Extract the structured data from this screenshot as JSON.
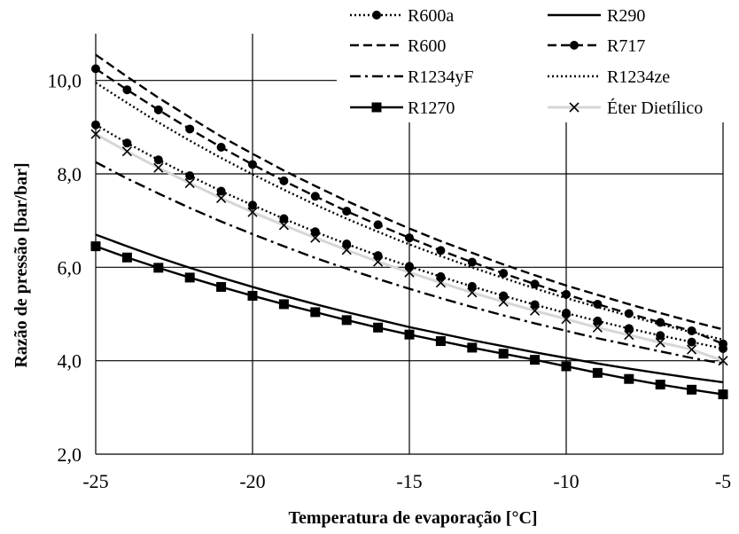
{
  "chart_data": {
    "type": "line",
    "title": "",
    "xlabel": "Temperatura de evaporação [°C]",
    "ylabel": "Razão de pressão [bar/bar]",
    "xlim": [
      -25,
      -5
    ],
    "ylim": [
      2.0,
      11.0
    ],
    "xticks": [
      -25,
      -20,
      -15,
      -10,
      -5
    ],
    "xtick_labels": [
      "-25",
      "-20",
      "-15",
      "-10",
      "-5"
    ],
    "yticks": [
      2.0,
      4.0,
      6.0,
      8.0,
      10.0
    ],
    "ytick_labels": [
      "2,0",
      "4,0",
      "6,0",
      "8,0",
      "10,0"
    ],
    "grid": true,
    "legend_position": "top-right",
    "x": [
      -25,
      -24,
      -23,
      -22,
      -21,
      -20,
      -19,
      -18,
      -17,
      -16,
      -15,
      -14,
      -13,
      -12,
      -11,
      -10,
      -9,
      -8,
      -7,
      -6,
      -5
    ],
    "series": [
      {
        "name": "R600a",
        "color": "#000000",
        "style": "dotted",
        "marker": "circle",
        "values": [
          9.05,
          8.66,
          8.3,
          7.96,
          7.63,
          7.33,
          7.04,
          6.76,
          6.5,
          6.25,
          6.02,
          5.8,
          5.59,
          5.39,
          5.2,
          5.02,
          4.85,
          4.69,
          4.54,
          4.4,
          4.26
        ]
      },
      {
        "name": "R290",
        "color": "#000000",
        "style": "solid",
        "marker": "none",
        "values": [
          6.7,
          6.45,
          6.21,
          5.99,
          5.78,
          5.58,
          5.39,
          5.21,
          5.04,
          4.88,
          4.72,
          4.58,
          4.44,
          4.31,
          4.18,
          4.06,
          3.94,
          3.83,
          3.73,
          3.63,
          3.54
        ]
      },
      {
        "name": "R600",
        "color": "#000000",
        "style": "dashed",
        "marker": "none",
        "values": [
          10.55,
          10.08,
          9.63,
          9.21,
          8.8,
          8.43,
          8.07,
          7.74,
          7.42,
          7.12,
          6.83,
          6.56,
          6.31,
          6.06,
          5.83,
          5.61,
          5.41,
          5.21,
          5.02,
          4.84,
          4.67
        ]
      },
      {
        "name": "R717",
        "color": "#000000",
        "style": "dashed",
        "marker": "circle",
        "values": [
          10.25,
          9.8,
          9.37,
          8.96,
          8.57,
          8.2,
          7.85,
          7.52,
          7.2,
          6.91,
          6.63,
          6.36,
          6.11,
          5.87,
          5.64,
          5.42,
          5.21,
          5.01,
          4.82,
          4.64,
          4.36
        ]
      },
      {
        "name": "R1234yF",
        "color": "#000000",
        "style": "dashdot",
        "marker": "none",
        "values": [
          8.25,
          7.9,
          7.58,
          7.27,
          6.98,
          6.71,
          6.45,
          6.2,
          5.97,
          5.75,
          5.54,
          5.34,
          5.15,
          4.97,
          4.8,
          4.64,
          4.48,
          4.34,
          4.2,
          4.06,
          3.94
        ]
      },
      {
        "name": "R1234ze",
        "color": "#000000",
        "style": "dotted",
        "marker": "none",
        "values": [
          9.95,
          9.52,
          9.1,
          8.71,
          8.34,
          7.99,
          7.66,
          7.34,
          7.04,
          6.76,
          6.49,
          6.24,
          6.0,
          5.77,
          5.55,
          5.34,
          5.15,
          4.96,
          4.78,
          4.61,
          4.45
        ]
      },
      {
        "name": "R1270",
        "color": "#000000",
        "style": "solid",
        "marker": "square",
        "values": [
          6.45,
          6.21,
          5.99,
          5.78,
          5.58,
          5.39,
          5.21,
          5.04,
          4.87,
          4.71,
          4.56,
          4.42,
          4.28,
          4.15,
          4.02,
          3.88,
          3.74,
          3.61,
          3.49,
          3.38,
          3.28
        ]
      },
      {
        "name": "Éter Dietílico",
        "color": "#000000",
        "style": "solid-gray",
        "marker": "x",
        "values": [
          8.85,
          8.48,
          8.13,
          7.8,
          7.48,
          7.18,
          6.9,
          6.63,
          6.37,
          6.12,
          5.89,
          5.67,
          5.46,
          5.26,
          5.07,
          4.89,
          4.71,
          4.55,
          4.39,
          4.24,
          4.0
        ]
      }
    ]
  }
}
